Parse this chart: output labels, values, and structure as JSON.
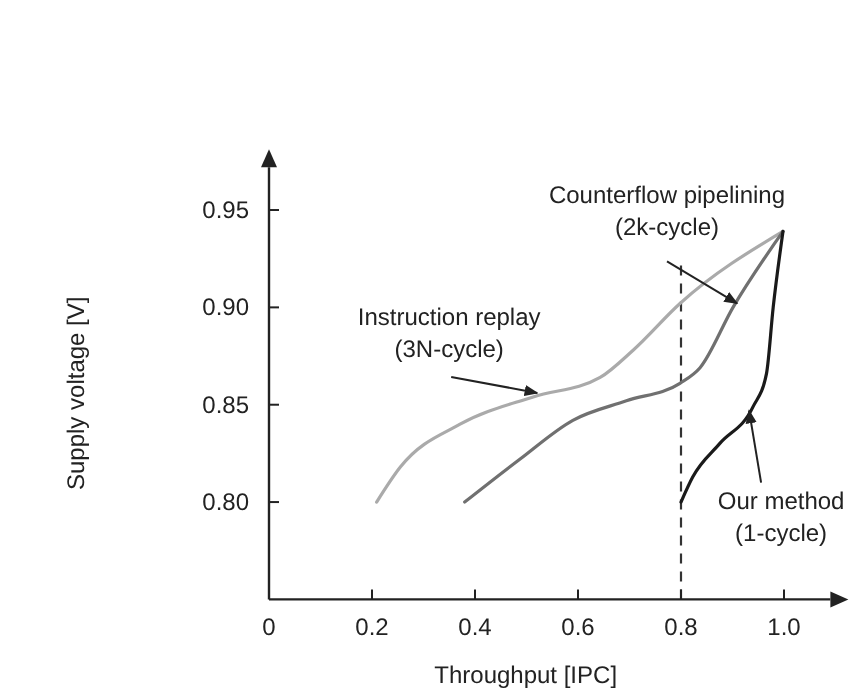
{
  "chart_data": {
    "type": "line",
    "xlabel": "Throughput [IPC]",
    "ylabel": "Supply voltage [V]",
    "xlim": [
      0,
      1.09
    ],
    "ylim": [
      0.75,
      0.972
    ],
    "xticks": [
      0,
      0.2,
      0.4,
      0.6,
      0.8,
      {
        "value": 1.0,
        "label": "1.0"
      }
    ],
    "yticks": [
      {
        "value": 0.8,
        "label": "0.80"
      },
      {
        "value": 0.85,
        "label": "0.85"
      },
      {
        "value": 0.9,
        "label": "0.90"
      },
      {
        "value": 0.95,
        "label": "0.95"
      }
    ],
    "grid": false,
    "legend": false,
    "line_style": "solid",
    "ref_lines": [
      {
        "axis": "x",
        "value": 0.8,
        "label": null,
        "line_style": "dashed",
        "color": "#333333"
      }
    ],
    "series": [
      {
        "name": "Instruction replay\n(3N-cycle)",
        "color": "#aaaaaa",
        "x": [
          0.209,
          0.255,
          0.371,
          0.513,
          0.643,
          0.707,
          0.798,
          0.998
        ],
        "values": [
          0.8,
          0.818,
          0.84,
          0.854,
          0.864,
          0.878,
          0.902,
          0.939
        ]
      },
      {
        "name": "Counterflow pipelining\n(2k-cycle)",
        "color": "#707070",
        "x": [
          0.38,
          0.487,
          0.59,
          0.694,
          0.798,
          0.837,
          0.901,
          0.998
        ],
        "values": [
          0.8,
          0.822,
          0.842,
          0.852,
          0.861,
          0.869,
          0.9,
          0.939
        ]
      },
      {
        "name": "Our method\n(1-cycle)",
        "color": "#1a1a1a",
        "x": [
          0.8,
          0.823,
          0.875,
          0.94,
          0.966,
          0.979,
          0.998
        ],
        "values": [
          0.8,
          0.813,
          0.83,
          0.849,
          0.866,
          0.9,
          0.939
        ]
      }
    ]
  }
}
